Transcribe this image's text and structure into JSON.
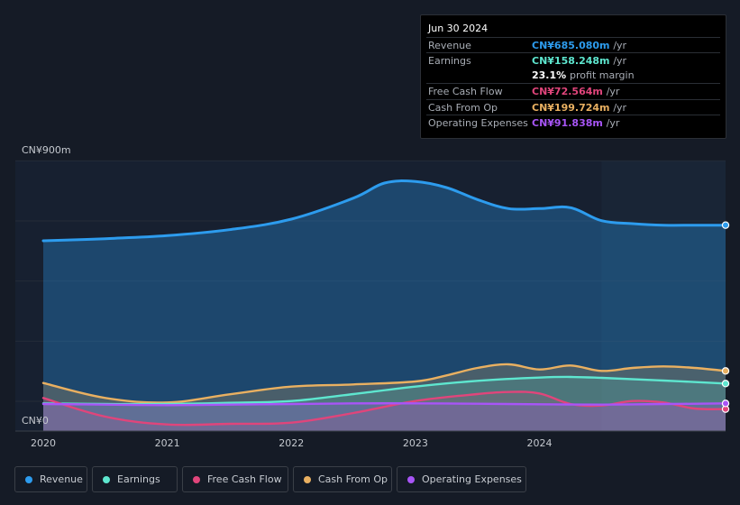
{
  "colors": {
    "revenue": "#2d9cee",
    "earnings": "#5ee6cf",
    "free_cash_flow": "#e0457b",
    "cash_from_op": "#e9b061",
    "operating_expenses": "#a855f7",
    "background": "#151b26"
  },
  "tooltip": {
    "date": "Jun 30 2024",
    "rows": [
      {
        "label": "Revenue",
        "value": "CN¥685.080m",
        "unit": "/yr",
        "color": "#2d9cee"
      },
      {
        "label": "Earnings",
        "value": "CN¥158.248m",
        "unit": "/yr",
        "color": "#5ee6cf"
      },
      {
        "label": "Free Cash Flow",
        "value": "CN¥72.564m",
        "unit": "/yr",
        "color": "#e0457b"
      },
      {
        "label": "Cash From Op",
        "value": "CN¥199.724m",
        "unit": "/yr",
        "color": "#e9b061"
      },
      {
        "label": "Operating Expenses",
        "value": "CN¥91.838m",
        "unit": "/yr",
        "color": "#a855f7"
      }
    ],
    "profit_margin_value": "23.1%",
    "profit_margin_label": "profit margin"
  },
  "legend": [
    {
      "label": "Revenue",
      "color": "#2d9cee"
    },
    {
      "label": "Earnings",
      "color": "#5ee6cf"
    },
    {
      "label": "Free Cash Flow",
      "color": "#e0457b"
    },
    {
      "label": "Cash From Op",
      "color": "#e9b061"
    },
    {
      "label": "Operating Expenses",
      "color": "#a855f7"
    }
  ],
  "chart_data": {
    "type": "line",
    "title": "",
    "xlabel": "",
    "ylabel": "",
    "unit": "CN¥m",
    "y_axis_labels": {
      "top": "CN¥900m",
      "bottom": "CN¥0"
    },
    "ylim": [
      0,
      900
    ],
    "xlim": [
      2019.0,
      2024.5
    ],
    "x_ticks": [
      {
        "value": 2019.0,
        "label": "2020"
      },
      {
        "value": 2020.0,
        "label": "2021"
      },
      {
        "value": 2021.0,
        "label": "2022"
      },
      {
        "value": 2022.0,
        "label": "2023"
      },
      {
        "value": 2023.0,
        "label": "2024"
      }
    ],
    "forecast_start": 2023.5,
    "series": [
      {
        "name": "Revenue",
        "key": "revenue",
        "x": [
          2019.0,
          2019.5,
          2020.0,
          2020.5,
          2021.0,
          2021.5,
          2021.75,
          2022.0,
          2022.25,
          2022.5,
          2022.75,
          2023.0,
          2023.25,
          2023.5,
          2023.75,
          2024.0,
          2024.25,
          2024.5
        ],
        "values": [
          633,
          640,
          650,
          670,
          705,
          775,
          825,
          830,
          810,
          770,
          740,
          740,
          743,
          700,
          690,
          685,
          685,
          685
        ]
      },
      {
        "name": "Earnings",
        "key": "earnings",
        "x": [
          2019.0,
          2019.5,
          2020.0,
          2020.5,
          2021.0,
          2021.5,
          2022.0,
          2022.5,
          2023.0,
          2023.25,
          2023.5,
          2024.0,
          2024.5
        ],
        "values": [
          92,
          90,
          90,
          94,
          100,
          123,
          148,
          167,
          178,
          180,
          177,
          168,
          158
        ]
      },
      {
        "name": "Free Cash Flow",
        "key": "free_cash_flow",
        "x": [
          2019.0,
          2019.5,
          2020.0,
          2020.5,
          2021.0,
          2021.5,
          2022.0,
          2022.5,
          2022.75,
          2023.0,
          2023.25,
          2023.5,
          2023.75,
          2024.0,
          2024.25,
          2024.5
        ],
        "values": [
          110,
          48,
          22,
          24,
          28,
          60,
          100,
          123,
          130,
          125,
          90,
          85,
          100,
          95,
          75,
          73
        ]
      },
      {
        "name": "Cash From Op",
        "key": "cash_from_op",
        "x": [
          2019.0,
          2019.5,
          2020.0,
          2020.5,
          2021.0,
          2021.5,
          2022.0,
          2022.25,
          2022.5,
          2022.75,
          2023.0,
          2023.25,
          2023.5,
          2023.75,
          2024.0,
          2024.25,
          2024.5
        ],
        "values": [
          160,
          110,
          95,
          122,
          148,
          155,
          165,
          185,
          210,
          222,
          205,
          218,
          200,
          210,
          215,
          210,
          200
        ]
      },
      {
        "name": "Operating Expenses",
        "key": "operating_expenses",
        "x": [
          2019.0,
          2019.5,
          2020.0,
          2020.5,
          2021.0,
          2021.5,
          2022.0,
          2022.5,
          2023.0,
          2023.5,
          2024.0,
          2024.5
        ],
        "values": [
          90,
          88,
          86,
          88,
          90,
          92,
          92,
          91,
          89,
          88,
          90,
          92
        ]
      }
    ]
  }
}
